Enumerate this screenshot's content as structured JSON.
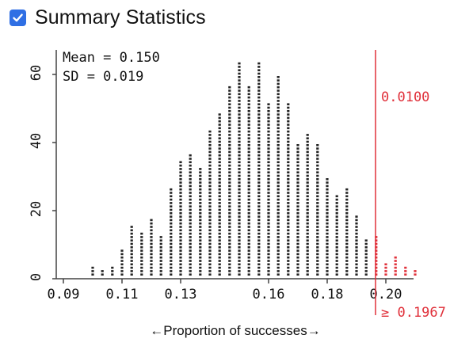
{
  "controls": {
    "summary_checkbox_checked": true,
    "summary_label": "Summary Statistics"
  },
  "stats": {
    "mean_text": "Mean = 0.150",
    "sd_text": "SD = 0.019"
  },
  "cutoff": {
    "value": 0.1967,
    "proportion_text": "0.0100",
    "label_text": "≥ 0.1967",
    "color": "#e0303a"
  },
  "chart_data": {
    "type": "bar",
    "title": "",
    "xlabel": "←Proportion of successes→",
    "ylabel": "",
    "xlim": [
      0.08,
      0.23
    ],
    "ylim": [
      0,
      68
    ],
    "x_ticks": [
      0.09,
      0.11,
      0.13,
      0.16,
      0.18,
      0.2
    ],
    "x_tick_labels": [
      "0.09",
      "0.11",
      "0.13",
      "0.16",
      "0.18",
      "0.20"
    ],
    "y_ticks": [
      0,
      20,
      40,
      60
    ],
    "y_tick_labels": [
      "0",
      "20",
      "40",
      "60"
    ],
    "bar_color": "#222222",
    "tail_color": "#e0303a",
    "x": [
      0.1,
      0.1033,
      0.1067,
      0.11,
      0.1133,
      0.1167,
      0.12,
      0.1233,
      0.1267,
      0.13,
      0.1333,
      0.1367,
      0.14,
      0.1433,
      0.1467,
      0.15,
      0.1533,
      0.1567,
      0.16,
      0.1633,
      0.1667,
      0.17,
      0.1733,
      0.1767,
      0.18,
      0.1833,
      0.1867,
      0.19,
      0.1933,
      0.1967,
      0.2,
      0.2033,
      0.2067,
      0.21
    ],
    "values": [
      2,
      1,
      2,
      7,
      14,
      12,
      16,
      11,
      25,
      33,
      35,
      31,
      42,
      47,
      55,
      62,
      55,
      62,
      50,
      58,
      50,
      38,
      41,
      38,
      28,
      23,
      25,
      17,
      10,
      11,
      3,
      5,
      2,
      1
    ]
  }
}
